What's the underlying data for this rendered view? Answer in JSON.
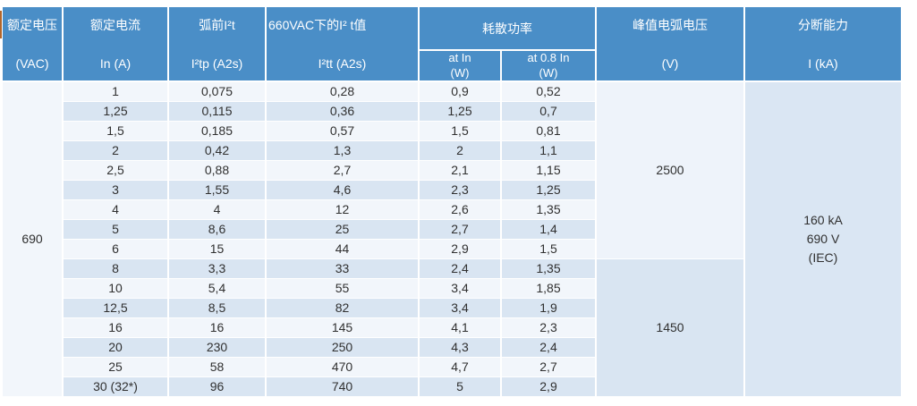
{
  "accent_color": "#b2662b",
  "header_color": "#4a8ec7",
  "band_light_color": "#f2f6fb",
  "band_blue_color": "#d9e5f2",
  "table": {
    "header": {
      "rated_voltage": {
        "line1": "额定电压",
        "line2": "(VAC)"
      },
      "rated_current": {
        "line1": "额定电流",
        "line2": "In (A)"
      },
      "prearc_i2t": {
        "line1": "弧前I²t",
        "line2": "I²tp (A2s)"
      },
      "i2t_660vac": {
        "line1": "660VAC下的I² t值",
        "line2": "I²tt (A2s)"
      },
      "power_dissipation": {
        "group": "耗散功率",
        "at_in": {
          "line1": "at In",
          "line2": "(W)"
        },
        "at_08in": {
          "line1": "at 0.8 In",
          "line2": "(W)"
        }
      },
      "peak_arc_voltage": {
        "line1": "峰值电弧电压",
        "line2": "(V)"
      },
      "breaking_capacity": {
        "line1": "分断能力",
        "line2": "I (kA)"
      }
    },
    "rated_voltage_value": "690",
    "peak_arc_voltage_cells": [
      {
        "value": "2500",
        "rowspan": 9
      },
      {
        "value": "1450",
        "rowspan": 7
      }
    ],
    "breaking_capacity_lines": [
      "160 kA",
      "690 V",
      "(IEC)"
    ],
    "rows": [
      {
        "in_a": "1",
        "i2tp": "0,075",
        "i2tt": "0,28",
        "p_at_in": "0,9",
        "p_at_08in": "0,52"
      },
      {
        "in_a": "1,25",
        "i2tp": "0,115",
        "i2tt": "0,36",
        "p_at_in": "1,25",
        "p_at_08in": "0,7"
      },
      {
        "in_a": "1,5",
        "i2tp": "0,185",
        "i2tt": "0,57",
        "p_at_in": "1,5",
        "p_at_08in": "0,81"
      },
      {
        "in_a": "2",
        "i2tp": "0,42",
        "i2tt": "1,3",
        "p_at_in": "2",
        "p_at_08in": "1,1"
      },
      {
        "in_a": "2,5",
        "i2tp": "0,88",
        "i2tt": "2,7",
        "p_at_in": "2,1",
        "p_at_08in": "1,15"
      },
      {
        "in_a": "3",
        "i2tp": "1,55",
        "i2tt": "4,6",
        "p_at_in": "2,3",
        "p_at_08in": "1,25"
      },
      {
        "in_a": "4",
        "i2tp": "4",
        "i2tt": "12",
        "p_at_in": "2,6",
        "p_at_08in": "1,35"
      },
      {
        "in_a": "5",
        "i2tp": "8,6",
        "i2tt": "25",
        "p_at_in": "2,7",
        "p_at_08in": "1,4"
      },
      {
        "in_a": "6",
        "i2tp": "15",
        "i2tt": "44",
        "p_at_in": "2,9",
        "p_at_08in": "1,5"
      },
      {
        "in_a": "8",
        "i2tp": "3,3",
        "i2tt": "33",
        "p_at_in": "2,4",
        "p_at_08in": "1,35"
      },
      {
        "in_a": "10",
        "i2tp": "5,4",
        "i2tt": "55",
        "p_at_in": "3,4",
        "p_at_08in": "1,85"
      },
      {
        "in_a": "12,5",
        "i2tp": "8,5",
        "i2tt": "82",
        "p_at_in": "3,4",
        "p_at_08in": "1,9"
      },
      {
        "in_a": "16",
        "i2tp": "16",
        "i2tt": "145",
        "p_at_in": "4,1",
        "p_at_08in": "2,3"
      },
      {
        "in_a": "20",
        "i2tp": "230",
        "i2tt": "250",
        "p_at_in": "4,3",
        "p_at_08in": "2,4"
      },
      {
        "in_a": "25",
        "i2tp": "58",
        "i2tt": "470",
        "p_at_in": "4,7",
        "p_at_08in": "2,7"
      },
      {
        "in_a": "30 (32*)",
        "i2tp": "96",
        "i2tt": "740",
        "p_at_in": "5",
        "p_at_08in": "2,9"
      }
    ]
  }
}
